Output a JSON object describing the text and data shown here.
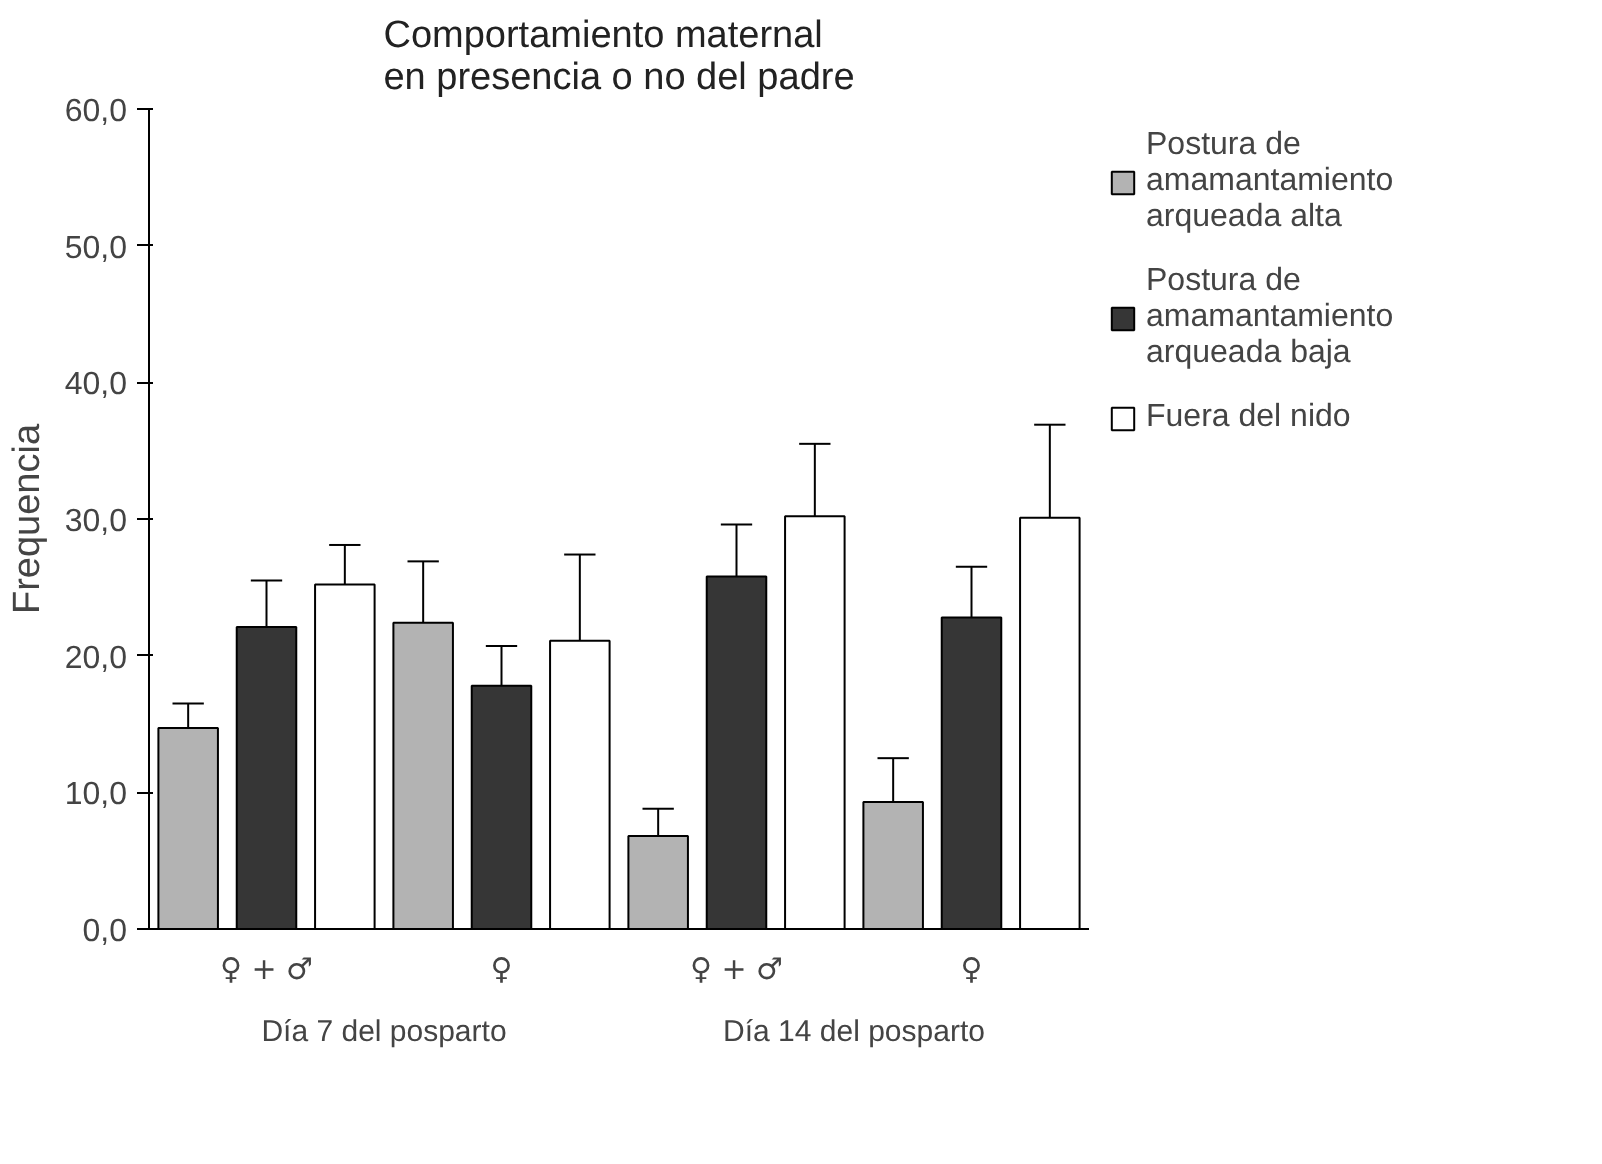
{
  "chart_data": {
    "type": "bar",
    "title": "Comportamiento maternal\nen presencia o no del padre",
    "ylabel": "Frequencia",
    "categories": [
      "♀ + ♂",
      "♀",
      "♀ + ♂",
      "♀"
    ],
    "series": [
      {
        "name": "Postura de amamantamiento arqueada alta",
        "color": "#b3b3b3",
        "values": [
          14.7,
          22.4,
          6.8,
          9.3
        ],
        "errors": [
          [
            14.7,
            16.5
          ],
          [
            22.4,
            26.9
          ],
          [
            6.8,
            8.8
          ],
          [
            9.3,
            12.5
          ]
        ]
      },
      {
        "name": "Postura de amamantamiento arqueada baja",
        "color": "#363636",
        "values": [
          22.1,
          17.8,
          25.8,
          22.8
        ],
        "errors": [
          [
            22.1,
            25.5
          ],
          [
            17.8,
            20.7
          ],
          [
            25.8,
            29.6
          ],
          [
            22.8,
            26.5
          ]
        ]
      },
      {
        "name": "Fuera del nido",
        "color": "#ffffff",
        "values": [
          25.2,
          21.1,
          30.2,
          30.1
        ],
        "errors": [
          [
            25.2,
            28.1
          ],
          [
            21.1,
            27.4
          ],
          [
            30.2,
            35.5
          ],
          [
            30.1,
            36.9
          ]
        ]
      }
    ],
    "ylim": [
      0,
      60
    ],
    "yticks": [
      {
        "value": 0,
        "label": "0,0"
      },
      {
        "value": 10,
        "label": "10,0"
      },
      {
        "value": 20,
        "label": "20,0"
      },
      {
        "value": 30,
        "label": "30,0"
      },
      {
        "value": 40,
        "label": "40,0"
      },
      {
        "value": 50,
        "label": "50,0"
      },
      {
        "value": 60,
        "label": "60,0"
      }
    ],
    "annotations": [
      "Día 7 del posparto",
      "Día 14 del posparto"
    ],
    "grid": false,
    "legend": "right"
  }
}
